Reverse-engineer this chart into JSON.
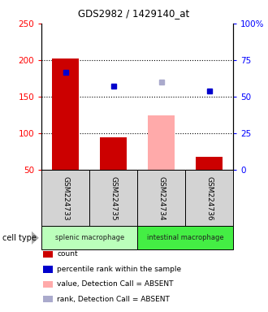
{
  "title": "GDS2982 / 1429140_at",
  "samples": [
    "GSM224733",
    "GSM224735",
    "GSM224734",
    "GSM224736"
  ],
  "bar_values": [
    202,
    95,
    125,
    68
  ],
  "bar_colors": [
    "#cc0000",
    "#cc0000",
    "#ffaaaa",
    "#cc0000"
  ],
  "dot_values": [
    183,
    165,
    170,
    158
  ],
  "dot_colors": [
    "#0000cc",
    "#0000cc",
    "#aaaacc",
    "#0000cc"
  ],
  "ylim_left": [
    50,
    250
  ],
  "ylim_right": [
    0,
    100
  ],
  "yticks_left": [
    50,
    100,
    150,
    200,
    250
  ],
  "yticks_right": [
    0,
    25,
    50,
    75,
    100
  ],
  "ytick_labels_right": [
    "0",
    "25",
    "50",
    "75",
    "100%"
  ],
  "hlines": [
    100,
    150,
    200
  ],
  "cell_types": [
    {
      "label": "splenic macrophage",
      "indices": [
        0,
        1
      ],
      "color": "#bbffbb"
    },
    {
      "label": "intestinal macrophage",
      "indices": [
        2,
        3
      ],
      "color": "#44ee44"
    }
  ],
  "bar_bottom": 50,
  "legend_items": [
    {
      "color": "#cc0000",
      "label": "count"
    },
    {
      "color": "#0000cc",
      "label": "percentile rank within the sample"
    },
    {
      "color": "#ffaaaa",
      "label": "value, Detection Call = ABSENT"
    },
    {
      "color": "#aaaacc",
      "label": "rank, Detection Call = ABSENT"
    }
  ]
}
